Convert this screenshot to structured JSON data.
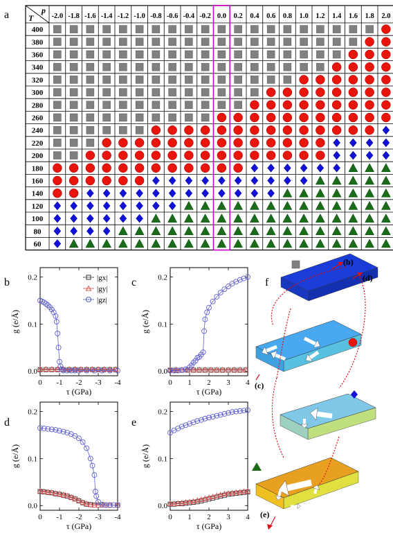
{
  "panel_labels": {
    "a": "a",
    "b": "b",
    "c": "c",
    "d": "d",
    "e": "e",
    "f": "f"
  },
  "table": {
    "T_header": "T",
    "p_header": "p",
    "p_values": [
      "-2.0",
      "-1.8",
      "-1.6",
      "-1.4",
      "-1.2",
      "-1.0",
      "-0.8",
      "-0.6",
      "-0.4",
      "-0.2",
      "0.0",
      "0.2",
      "0.4",
      "0.6",
      "0.8",
      "1.0",
      "1.2",
      "1.4",
      "1.6",
      "1.8",
      "2.0"
    ],
    "T_values": [
      "400",
      "380",
      "360",
      "340",
      "320",
      "300",
      "280",
      "260",
      "240",
      "220",
      "200",
      "180",
      "160",
      "140",
      "120",
      "100",
      "80",
      "60"
    ],
    "phase_codes_note": "S=square, C=circle, D=diamond, T=triangle",
    "rows": [
      "SSSSSSSSSSSSSSSSSSSSC",
      "SSSSSSSSSSSSSSSSSSSCC",
      "SSSSSSSSSSSSSSSSSSCCC",
      "SSSSSSSSSSSSSSSSSCCCC",
      "SSSSSSSSSSSSSSSCCCCCC",
      "SSSSSSSSSSSSSCCCCCCCC",
      "SSSSSSSSSSSSCCCCCCCCC",
      "SSSSSSSSSSCCCCCCCCCCC",
      "SSSSSSCCCCCCCCCCCCCCD",
      "SSSCCCCCCCCCCCCCCDDDD",
      "SSCCCCCCCCCCCCCCCDDDD",
      "CCCCCCCCCCCCDDDDDDTTT",
      "CCCCCCDDDDDDDDDDTTTTT",
      "CCDDDDDDDDDDDDTTTTTTT",
      "DDDDDDDDTTTTTTTTTTTTT",
      "DDDDDDTTTTTTTTTTTTTTT",
      "DDDDTTTTTTTTTTTTTTTTT",
      "DTTTTTTTTTTTTTTTTTTTT"
    ],
    "highlight_column": "0.0",
    "colors": {
      "square": "#808080",
      "circle": "#e8150c",
      "diamond": "#1010d8",
      "triangle": "#1a6b1a",
      "highlight": "#cc00cc"
    }
  },
  "chart_data": [
    {
      "panel": "b",
      "type": "scatter",
      "xlabel": "τ (GPa)",
      "ylabel": "g (e/Å)",
      "xlim": [
        0,
        -4
      ],
      "ylim": [
        -0.01,
        0.22
      ],
      "xticks": [
        "0",
        "-1",
        "-2",
        "-3",
        "-4"
      ],
      "yticks": [
        "0.0",
        "0.1",
        "0.2"
      ],
      "legend": [
        "|gx|",
        "|gy|",
        "|gz|"
      ],
      "series": [
        {
          "name": "|gx|",
          "marker": "square",
          "color": "#333333",
          "x": [
            0,
            -0.3,
            -0.6,
            -0.9,
            -1.2,
            -1.5,
            -1.8,
            -2.1,
            -2.4,
            -2.7,
            -3.0,
            -3.3,
            -3.6,
            -3.9
          ],
          "y": [
            0.003,
            0.003,
            0.003,
            0.003,
            0.003,
            0.003,
            0.003,
            0.003,
            0.003,
            0.003,
            0.003,
            0.003,
            0.003,
            0.003
          ]
        },
        {
          "name": "|gy|",
          "marker": "triangle",
          "color": "#e05050",
          "x": [
            0,
            -0.3,
            -0.6,
            -0.9,
            -1.2,
            -1.5,
            -1.8,
            -2.1,
            -2.4,
            -2.7,
            -3.0,
            -3.3,
            -3.6,
            -3.9
          ],
          "y": [
            0.004,
            0.004,
            0.004,
            0.004,
            0.004,
            0.004,
            0.004,
            0.004,
            0.004,
            0.004,
            0.004,
            0.004,
            0.004,
            0.004
          ]
        },
        {
          "name": "|gz|",
          "marker": "circle",
          "color": "#6060d0",
          "x": [
            0,
            -0.1,
            -0.2,
            -0.3,
            -0.4,
            -0.5,
            -0.6,
            -0.7,
            -0.8,
            -0.85,
            -0.9,
            -0.95,
            -1.0,
            -1.05,
            -1.1,
            -1.2,
            -1.4,
            -1.6,
            -1.8,
            -2.0,
            -2.4,
            -2.8,
            -3.2,
            -3.6,
            -4.0
          ],
          "y": [
            0.15,
            0.148,
            0.146,
            0.143,
            0.14,
            0.136,
            0.131,
            0.125,
            0.117,
            0.105,
            0.08,
            0.05,
            0.02,
            0.01,
            0.004,
            0.001,
            0.001,
            0.001,
            0.001,
            0.001,
            0.001,
            0.001,
            0.001,
            0.001,
            0.001
          ]
        }
      ]
    },
    {
      "panel": "c",
      "type": "scatter",
      "xlabel": "τ (GPa)",
      "ylabel": "g (e/Å)",
      "xlim": [
        0,
        4
      ],
      "ylim": [
        -0.01,
        0.22
      ],
      "xticks": [
        "0",
        "1",
        "2",
        "3",
        "4"
      ],
      "yticks": [
        "0.0",
        "0.1",
        "0.2"
      ],
      "series": [
        {
          "name": "|gx|",
          "marker": "square",
          "color": "#333333",
          "x": [
            0,
            0.3,
            0.6,
            0.9,
            1.2,
            1.5,
            1.8,
            2.1,
            2.4,
            2.7,
            3.0,
            3.3,
            3.6,
            3.9
          ],
          "y": [
            0.002,
            0.002,
            0.002,
            0.002,
            0.002,
            0.002,
            0.002,
            0.002,
            0.002,
            0.002,
            0.002,
            0.002,
            0.002,
            0.002
          ]
        },
        {
          "name": "|gy|",
          "marker": "triangle",
          "color": "#e05050",
          "x": [
            0,
            0.3,
            0.6,
            0.9,
            1.2,
            1.5,
            1.8,
            2.1,
            2.4,
            2.7,
            3.0,
            3.3,
            3.6,
            3.9
          ],
          "y": [
            0.003,
            0.003,
            0.003,
            0.003,
            0.003,
            0.003,
            0.003,
            0.003,
            0.003,
            0.003,
            0.003,
            0.003,
            0.003,
            0.003
          ]
        },
        {
          "name": "|gz|",
          "marker": "circle",
          "color": "#6060d0",
          "x": [
            0,
            0.2,
            0.4,
            0.6,
            0.8,
            1.0,
            1.1,
            1.2,
            1.3,
            1.4,
            1.5,
            1.6,
            1.7,
            1.75,
            1.8,
            1.9,
            2.0,
            2.2,
            2.4,
            2.6,
            2.8,
            3.0,
            3.2,
            3.4,
            3.6,
            3.8,
            4.0
          ],
          "y": [
            0.001,
            0.001,
            0.001,
            0.002,
            0.004,
            0.008,
            0.012,
            0.018,
            0.022,
            0.028,
            0.03,
            0.035,
            0.04,
            0.085,
            0.11,
            0.125,
            0.135,
            0.148,
            0.158,
            0.167,
            0.174,
            0.18,
            0.186,
            0.19,
            0.194,
            0.197,
            0.2
          ]
        }
      ]
    },
    {
      "panel": "d",
      "type": "scatter",
      "xlabel": "τ (GPa)",
      "ylabel": "g (e/Å)",
      "xlim": [
        0,
        -4
      ],
      "ylim": [
        -0.01,
        0.22
      ],
      "xticks": [
        "0",
        "-1",
        "-2",
        "-3",
        "-4"
      ],
      "yticks": [
        "0.0",
        "0.1",
        "0.2"
      ],
      "series": [
        {
          "name": "|gx|",
          "marker": "square",
          "color": "#333333",
          "x": [
            0,
            -0.2,
            -0.4,
            -0.6,
            -0.8,
            -1.0,
            -1.2,
            -1.4,
            -1.6,
            -1.8,
            -2.0,
            -2.2,
            -2.4,
            -2.6,
            -2.8,
            -3.0,
            -3.3,
            -3.6,
            -4.0
          ],
          "y": [
            0.03,
            0.029,
            0.028,
            0.027,
            0.025,
            0.024,
            0.022,
            0.02,
            0.017,
            0.014,
            0.01,
            0.006,
            0.003,
            0.002,
            0.001,
            0.001,
            0.001,
            0.001,
            0.001
          ]
        },
        {
          "name": "|gy|",
          "marker": "triangle",
          "color": "#e05050",
          "x": [
            0,
            -0.2,
            -0.4,
            -0.6,
            -0.8,
            -1.0,
            -1.2,
            -1.4,
            -1.6,
            -1.8,
            -2.0,
            -2.2,
            -2.4,
            -2.6,
            -2.8,
            -3.0,
            -3.3,
            -3.6,
            -4.0
          ],
          "y": [
            0.031,
            0.03,
            0.029,
            0.028,
            0.026,
            0.025,
            0.023,
            0.021,
            0.018,
            0.015,
            0.011,
            0.007,
            0.004,
            0.002,
            0.001,
            0.001,
            0.001,
            0.001,
            0.001
          ]
        },
        {
          "name": "|gz|",
          "marker": "circle",
          "color": "#6060d0",
          "x": [
            0,
            -0.2,
            -0.4,
            -0.6,
            -0.8,
            -1.0,
            -1.2,
            -1.4,
            -1.6,
            -1.8,
            -2.0,
            -2.2,
            -2.4,
            -2.6,
            -2.7,
            -2.8,
            -2.85,
            -2.9,
            -3.0,
            -3.2,
            -3.4,
            -3.6,
            -3.8,
            -4.0
          ],
          "y": [
            0.165,
            0.164,
            0.163,
            0.162,
            0.161,
            0.159,
            0.157,
            0.155,
            0.152,
            0.148,
            0.143,
            0.135,
            0.122,
            0.1,
            0.085,
            0.065,
            0.03,
            0.02,
            0.008,
            0.002,
            0.001,
            0.001,
            0.001,
            0.001
          ]
        }
      ]
    },
    {
      "panel": "e",
      "type": "scatter",
      "xlabel": "τ (GPa)",
      "ylabel": "g (e/Å)",
      "xlim": [
        0,
        4
      ],
      "ylim": [
        -0.01,
        0.22
      ],
      "xticks": [
        "0",
        "1",
        "2",
        "3",
        "4"
      ],
      "yticks": [
        "0.0",
        "0.1",
        "0.2"
      ],
      "series": [
        {
          "name": "|gx|",
          "marker": "square",
          "color": "#333333",
          "x": [
            0,
            0.2,
            0.4,
            0.6,
            0.8,
            1.0,
            1.2,
            1.4,
            1.6,
            1.8,
            2.0,
            2.2,
            2.4,
            2.6,
            2.8,
            3.0,
            3.2,
            3.4,
            3.6,
            3.8,
            4.0
          ],
          "y": [
            0.003,
            0.003,
            0.004,
            0.004,
            0.005,
            0.006,
            0.007,
            0.008,
            0.01,
            0.012,
            0.014,
            0.016,
            0.018,
            0.02,
            0.022,
            0.024,
            0.025,
            0.026,
            0.027,
            0.028,
            0.029
          ]
        },
        {
          "name": "|gy|",
          "marker": "triangle",
          "color": "#e05050",
          "x": [
            0,
            0.2,
            0.4,
            0.6,
            0.8,
            1.0,
            1.2,
            1.4,
            1.6,
            1.8,
            2.0,
            2.2,
            2.4,
            2.6,
            2.8,
            3.0,
            3.2,
            3.4,
            3.6,
            3.8,
            4.0
          ],
          "y": [
            0.004,
            0.004,
            0.005,
            0.006,
            0.007,
            0.008,
            0.009,
            0.011,
            0.013,
            0.015,
            0.017,
            0.019,
            0.021,
            0.023,
            0.025,
            0.026,
            0.027,
            0.028,
            0.029,
            0.03,
            0.031
          ]
        },
        {
          "name": "|gz|",
          "marker": "circle",
          "color": "#6060d0",
          "x": [
            0,
            0.2,
            0.4,
            0.6,
            0.8,
            1.0,
            1.2,
            1.4,
            1.6,
            1.8,
            2.0,
            2.2,
            2.4,
            2.6,
            2.8,
            3.0,
            3.2,
            3.4,
            3.6,
            3.8,
            4.0
          ],
          "y": [
            0.155,
            0.16,
            0.164,
            0.168,
            0.171,
            0.174,
            0.177,
            0.18,
            0.182,
            0.185,
            0.187,
            0.189,
            0.191,
            0.193,
            0.195,
            0.197,
            0.199,
            0.2,
            0.201,
            0.202,
            0.203
          ]
        }
      ]
    }
  ],
  "panel_f": {
    "path_labels": [
      "(b)",
      "(d)",
      "(c)",
      "(e)"
    ],
    "slab_colors": [
      "#1a3cd8",
      "#48a8f0",
      "#80c8e8",
      "#e8a020"
    ]
  }
}
